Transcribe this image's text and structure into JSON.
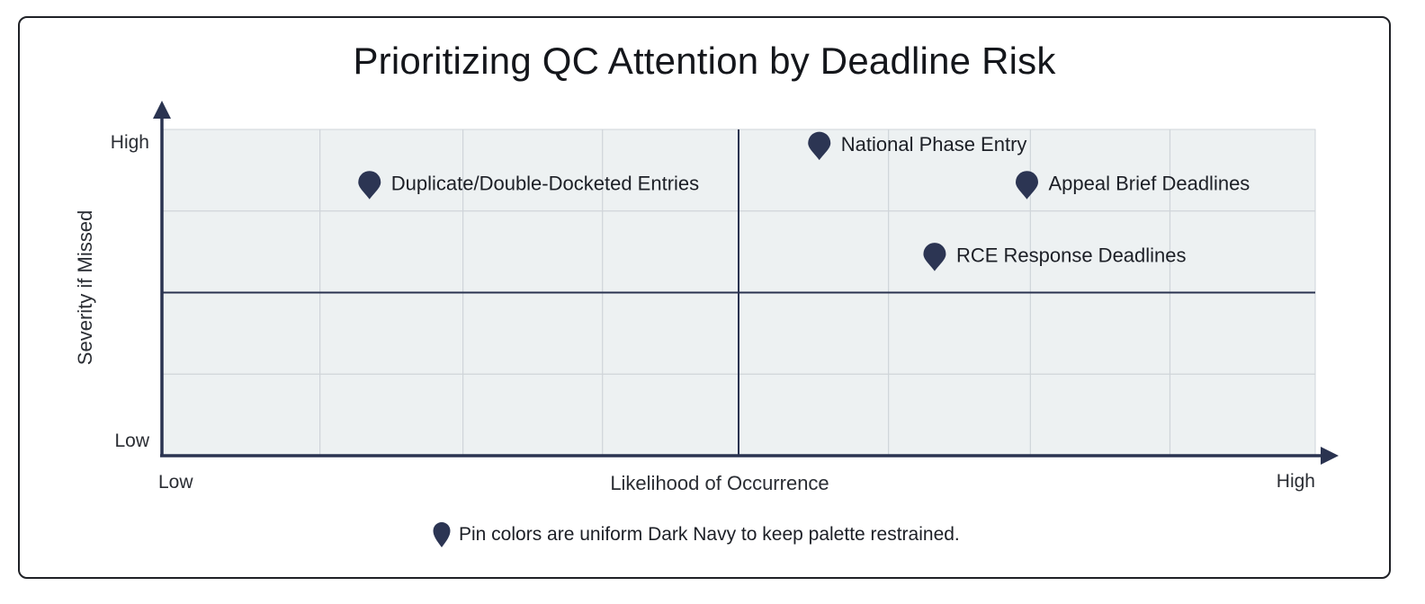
{
  "chart_data": {
    "type": "scatter",
    "title": "Prioritizing QC Attention by Deadline Risk",
    "xlabel": "Likelihood of Occurrence",
    "ylabel": "Severity if Missed",
    "x_tick_low": "Low",
    "x_tick_high": "High",
    "y_tick_low": "Low",
    "y_tick_high": "High",
    "xlim": [
      0,
      1
    ],
    "ylim": [
      0,
      1
    ],
    "grid": true,
    "quadrant_dividers": {
      "x": 0.5,
      "y": 0.5
    },
    "points": [
      {
        "label": "Duplicate/Double-Docketed Entries",
        "x": 0.18,
        "y": 0.83
      },
      {
        "label": "National Phase Entry",
        "x": 0.57,
        "y": 0.95
      },
      {
        "label": "Appeal Brief Deadlines",
        "x": 0.75,
        "y": 0.83
      },
      {
        "label": "RCE Response Deadlines",
        "x": 0.67,
        "y": 0.61
      }
    ],
    "legend": {
      "text": "Pin colors are uniform Dark Navy to keep palette restrained.",
      "placement": "bottom-center"
    }
  },
  "colors": {
    "pin": "#2c3553",
    "axis": "#2a3350",
    "plot_bg": "#edf1f2",
    "grid": "#cfd4d9"
  },
  "icons": {
    "pin": "map-pin-icon"
  }
}
